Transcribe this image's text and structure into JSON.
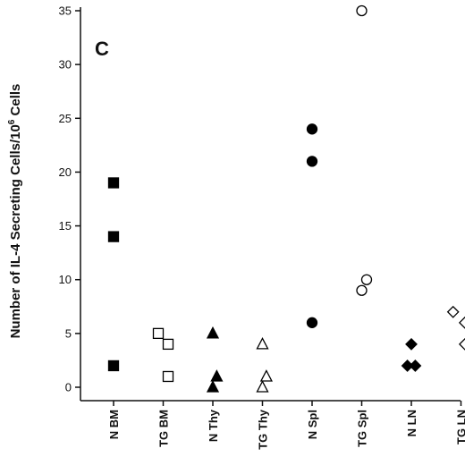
{
  "chart_data": {
    "type": "scatter",
    "panel_label": "C",
    "ylabel_pre": "Number of IL-4 Secreting Cells/10",
    "ylabel_sup": "6",
    "ylabel_post": " Cells",
    "xlabel": "",
    "ylim": [
      0,
      35
    ],
    "yticks": [
      0,
      5,
      10,
      15,
      20,
      25,
      30,
      35
    ],
    "ytick_labels": [
      "0",
      "5",
      "10",
      "15",
      "20",
      "25",
      "30",
      "35"
    ],
    "grid": false,
    "categories": [
      "N BM",
      "TG BM",
      "N Thy",
      "TG Thy",
      "N Spl",
      "TG Spl",
      "N LN",
      "TG LN"
    ],
    "series": [
      {
        "category": "N BM",
        "marker": "square",
        "filled": true,
        "points": [
          {
            "dx": 0,
            "y": 19
          },
          {
            "dx": 0,
            "y": 14
          },
          {
            "dx": 0,
            "y": 2
          }
        ]
      },
      {
        "category": "TG BM",
        "marker": "square",
        "filled": false,
        "points": [
          {
            "dx": -0.25,
            "y": 5
          },
          {
            "dx": 0.25,
            "y": 4
          },
          {
            "dx": 0.25,
            "y": 1
          }
        ]
      },
      {
        "category": "N Thy",
        "marker": "triangle",
        "filled": true,
        "points": [
          {
            "dx": 0,
            "y": 5
          },
          {
            "dx": 0.2,
            "y": 1
          },
          {
            "dx": 0,
            "y": 0
          }
        ]
      },
      {
        "category": "TG Thy",
        "marker": "triangle",
        "filled": false,
        "points": [
          {
            "dx": 0,
            "y": 4
          },
          {
            "dx": 0.2,
            "y": 1
          },
          {
            "dx": 0,
            "y": 0
          }
        ]
      },
      {
        "category": "N Spl",
        "marker": "circle",
        "filled": true,
        "points": [
          {
            "dx": 0,
            "y": 24
          },
          {
            "dx": 0,
            "y": 21
          },
          {
            "dx": 0,
            "y": 6
          }
        ]
      },
      {
        "category": "TG Spl",
        "marker": "circle",
        "filled": false,
        "points": [
          {
            "dx": 0,
            "y": 35
          },
          {
            "dx": 0.25,
            "y": 10
          },
          {
            "dx": 0,
            "y": 9
          }
        ]
      },
      {
        "category": "N LN",
        "marker": "diamond",
        "filled": true,
        "points": [
          {
            "dx": 0,
            "y": 4
          },
          {
            "dx": -0.2,
            "y": 2
          },
          {
            "dx": 0.2,
            "y": 2
          }
        ]
      },
      {
        "category": "TG LN",
        "marker": "diamond",
        "filled": false,
        "points": [
          {
            "dx": -0.4,
            "y": 7
          },
          {
            "dx": 0.2,
            "y": 6
          },
          {
            "dx": 0.2,
            "y": 4
          }
        ]
      }
    ]
  }
}
